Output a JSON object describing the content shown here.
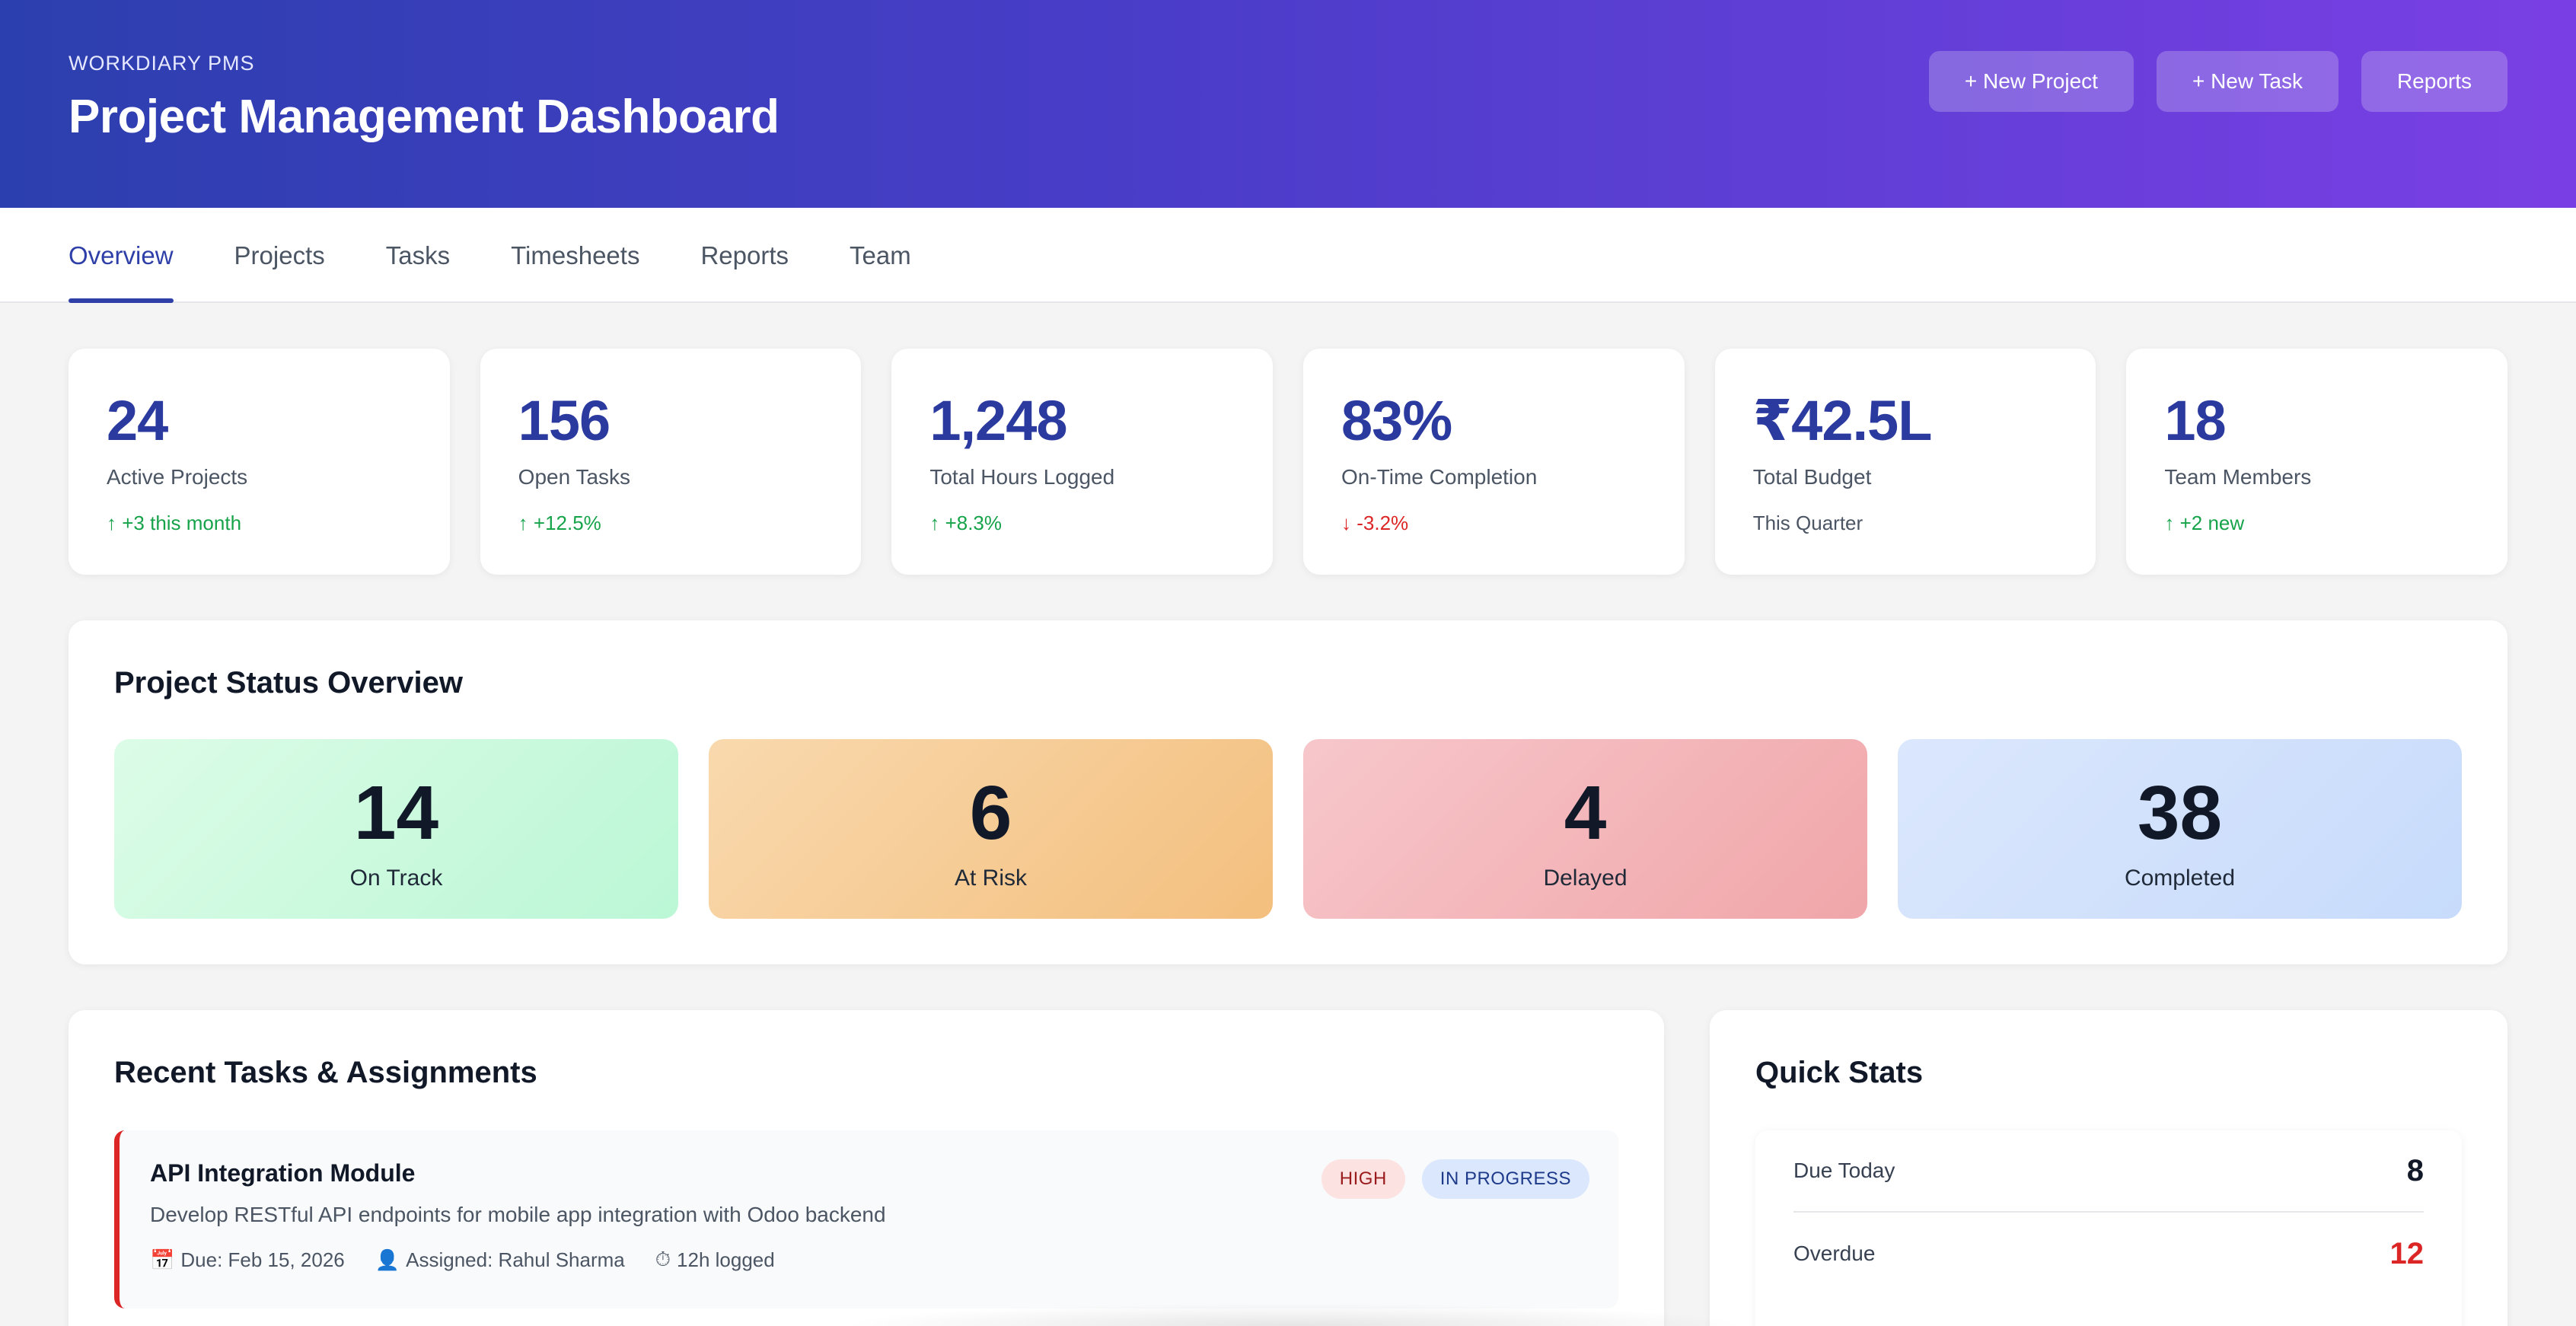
{
  "header": {
    "brand": "WORKDIARY PMS",
    "title": "Project Management Dashboard",
    "actions": [
      {
        "label": "+ New Project"
      },
      {
        "label": "+ New Task"
      },
      {
        "label": "Reports"
      }
    ]
  },
  "tabs": [
    {
      "label": "Overview",
      "active": true
    },
    {
      "label": "Projects"
    },
    {
      "label": "Tasks"
    },
    {
      "label": "Timesheets"
    },
    {
      "label": "Reports"
    },
    {
      "label": "Team"
    }
  ],
  "kpis": [
    {
      "value": "24",
      "label": "Active Projects",
      "trend": "↑ +3 this month",
      "trend_type": "up"
    },
    {
      "value": "156",
      "label": "Open Tasks",
      "trend": "↑ +12.5%",
      "trend_type": "up"
    },
    {
      "value": "1,248",
      "label": "Total Hours Logged",
      "trend": "↑ +8.3%",
      "trend_type": "up"
    },
    {
      "value": "83%",
      "label": "On-Time Completion",
      "trend": "↓ -3.2%",
      "trend_type": "down"
    },
    {
      "value": "₹42.5L",
      "label": "Total Budget",
      "trend": "This Quarter",
      "trend_type": "neutral"
    },
    {
      "value": "18",
      "label": "Team Members",
      "trend": "↑ +2 new",
      "trend_type": "up"
    }
  ],
  "status_overview": {
    "title": "Project Status Overview",
    "items": [
      {
        "value": "14",
        "label": "On Track",
        "color": "#bbf7d6"
      },
      {
        "value": "6",
        "label": "At Risk",
        "color": "#f3bf7e"
      },
      {
        "value": "4",
        "label": "Delayed",
        "color": "#f0a6a9"
      },
      {
        "value": "38",
        "label": "Completed",
        "color": "#c7dbfb"
      }
    ]
  },
  "recent_tasks": {
    "title": "Recent Tasks & Assignments",
    "items": [
      {
        "title": "API Integration Module",
        "description": "Develop RESTful API endpoints for mobile app integration with Odoo backend",
        "priority": "HIGH",
        "status": "IN PROGRESS",
        "due": "Due: Feb 15, 2026",
        "assigned": "Assigned: Rahul Sharma",
        "logged": "12h logged",
        "icons": {
          "due": "calendar-icon",
          "assigned": "user-icon",
          "logged": "stopwatch-icon"
        }
      }
    ]
  },
  "quick_stats": {
    "title": "Quick Stats",
    "rows": [
      {
        "label": "Due Today",
        "value": "8"
      },
      {
        "label": "Overdue",
        "value": "12"
      }
    ]
  },
  "colors": {
    "accent": "#2f3fa8",
    "header_start": "#2c3fae",
    "header_end": "#7a3fe4",
    "positive": "#16a34a",
    "negative": "#dc2626"
  }
}
